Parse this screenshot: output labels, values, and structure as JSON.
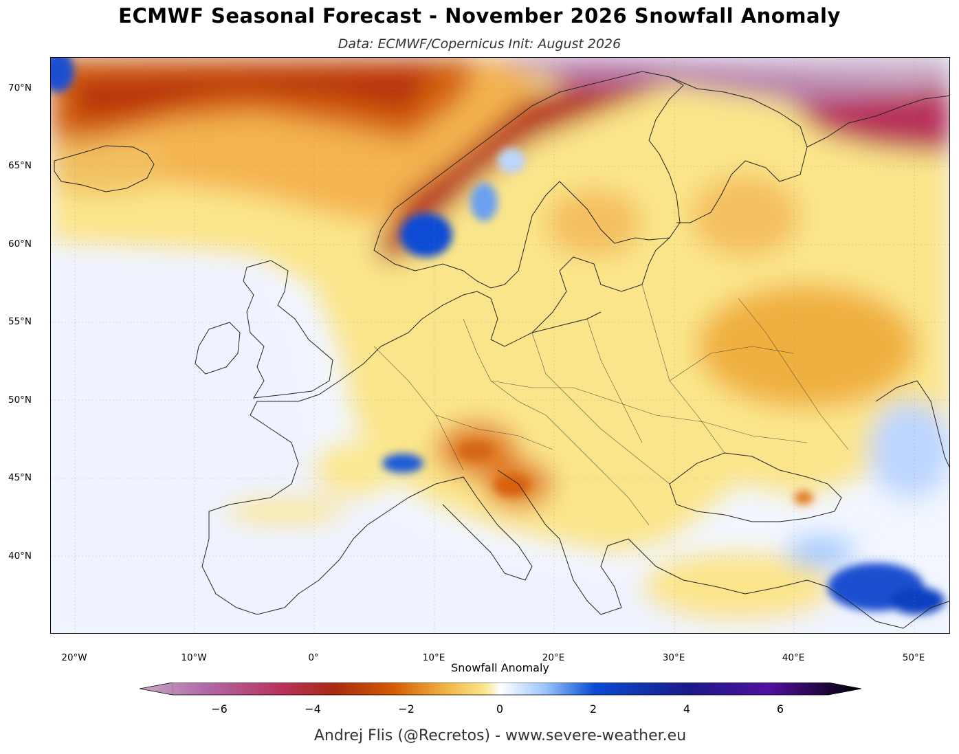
{
  "title": "ECMWF Seasonal Forecast - November 2026 Snowfall Anomaly",
  "subtitle": "Data: ECMWF/Copernicus  Init: August 2026",
  "map": {
    "region": "Europe",
    "variable": "snowfall anomaly",
    "lat_labels": [
      "70°N",
      "65°N",
      "60°N",
      "55°N",
      "50°N",
      "45°N",
      "40°N"
    ],
    "lon_labels": [
      "20°W",
      "10°W",
      "0°",
      "10°E",
      "20°E",
      "30°E",
      "40°E",
      "50°E"
    ],
    "features": [
      "strong negative anomaly along Norwegian coast and Barents Sea",
      "positive anomaly over southern Norway mountains",
      "positive anomaly over western Alps",
      "positive anomaly over eastern Turkey / Caucasus"
    ]
  },
  "colorbar": {
    "label": "Snowfall Anomaly",
    "min": -7,
    "max": 7,
    "ticks": [
      "−6",
      "−4",
      "−2",
      "0",
      "2",
      "4",
      "6"
    ],
    "colors": [
      "#c8a8c4",
      "#b06aa8",
      "#b8305a",
      "#a82a10",
      "#d45a00",
      "#f0b040",
      "#fbe890",
      "#ffffff",
      "#9ec8ff",
      "#0a4cd4",
      "#1a1a8a",
      "#5010a0",
      "#000000"
    ]
  },
  "footer": "Andrej Flis (@Recretos) - www.severe-weather.eu"
}
